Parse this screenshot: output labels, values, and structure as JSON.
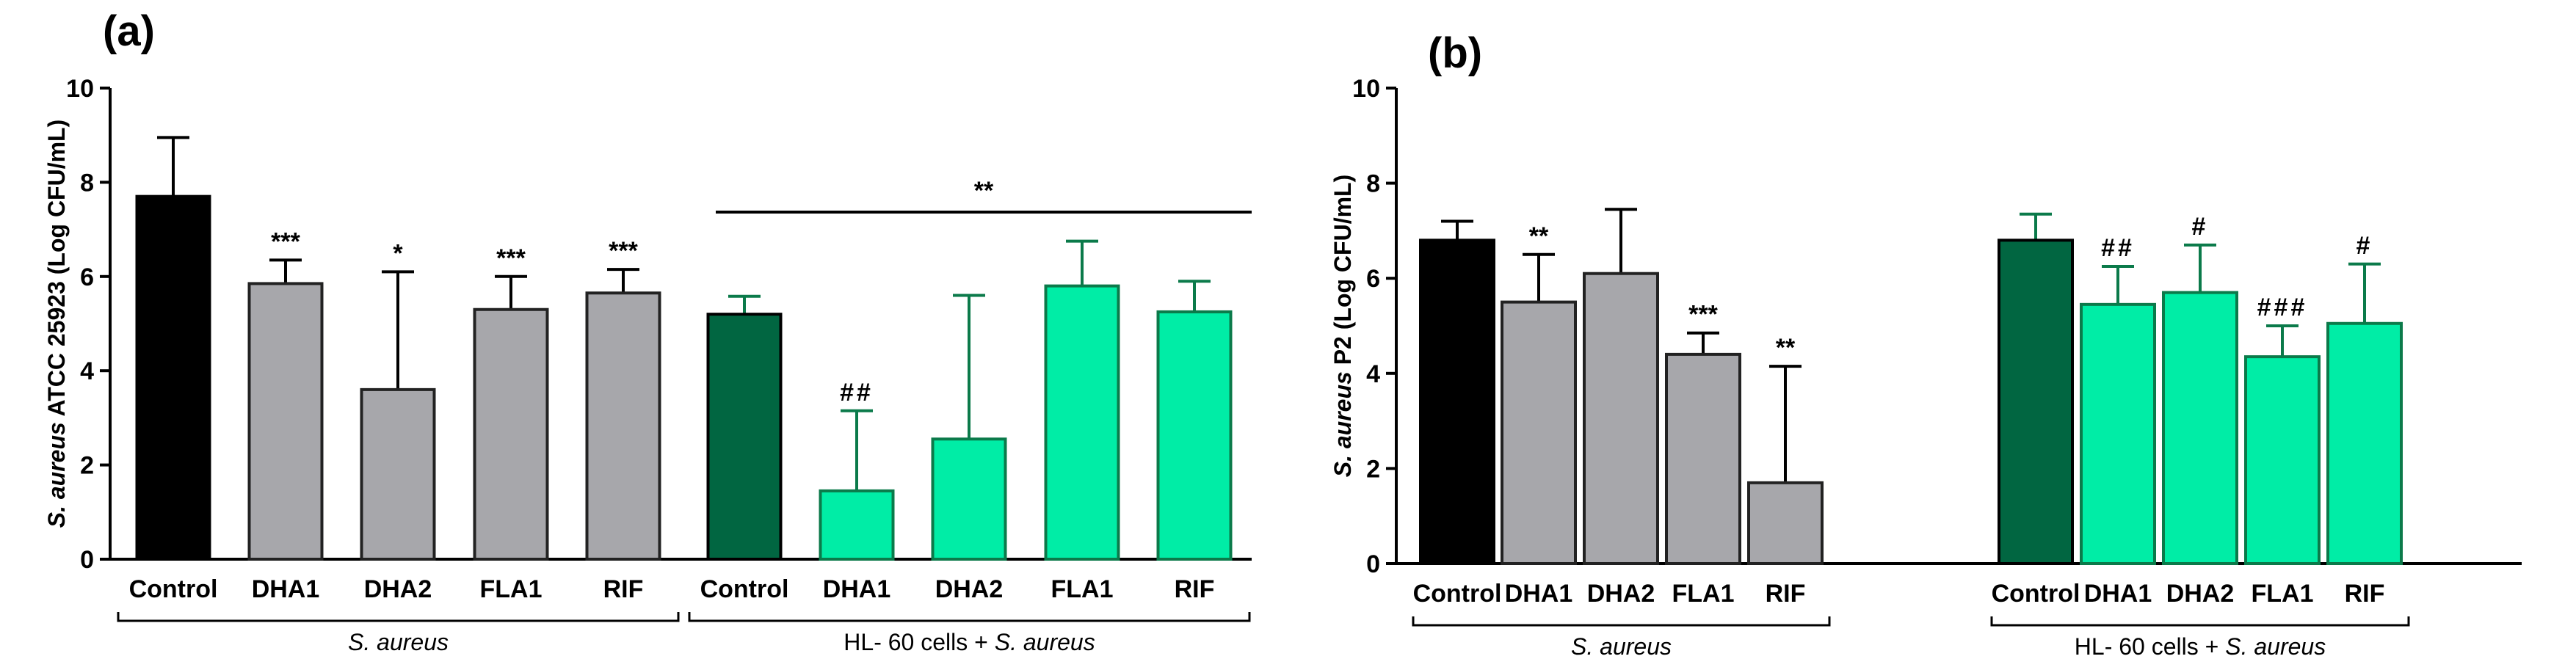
{
  "colors": {
    "control_sa": "#000000",
    "treated_sa": "#a7a7ab",
    "control_hl": "#016641",
    "treated_hl": "#00eda6",
    "axis": "#000000"
  },
  "chart_data": [
    {
      "type": "bar",
      "panel": "(a)",
      "ylabel_italic": "S. aureus",
      "ylabel_rest": " ATCC 25923 (Log CFU/mL)",
      "ylim": [
        0,
        10
      ],
      "yticks": [
        "0",
        "2",
        "4",
        "6",
        "8",
        "10"
      ],
      "categories": [
        "Control",
        "DHA1",
        "DHA2",
        "FLA1",
        "RIF",
        "Control",
        "DHA1",
        "DHA2",
        "FLA1",
        "RIF"
      ],
      "values": [
        7.7,
        5.85,
        3.6,
        5.3,
        5.65,
        5.2,
        1.45,
        2.55,
        5.8,
        5.25
      ],
      "errors": [
        1.25,
        0.5,
        2.5,
        0.7,
        0.5,
        0.38,
        1.7,
        3.05,
        0.95,
        0.65
      ],
      "bar_kinds": [
        "control_sa",
        "treated_sa",
        "treated_sa",
        "treated_sa",
        "treated_sa",
        "control_hl",
        "treated_hl",
        "treated_hl",
        "treated_hl",
        "treated_hl"
      ],
      "significance": [
        "",
        "***",
        "*",
        "***",
        "***",
        "",
        "##",
        "",
        "",
        ""
      ],
      "bracket_label": "**",
      "groups": [
        {
          "italic": "S. aureus",
          "text": ""
        },
        {
          "italic": "S. aureus",
          "text": "HL- 60 cells + "
        }
      ]
    },
    {
      "type": "bar",
      "panel": "(b)",
      "ylabel_italic": "S. aureus",
      "ylabel_rest": " P2 (Log CFU/mL)",
      "ylim": [
        0,
        10
      ],
      "yticks": [
        "0",
        "2",
        "4",
        "6",
        "8",
        "10"
      ],
      "categories": [
        "Control",
        "DHA1",
        "DHA2",
        "FLA1",
        "RIF",
        "Control",
        "DHA1",
        "DHA2",
        "FLA1",
        "RIF"
      ],
      "values": [
        6.8,
        5.5,
        6.1,
        4.4,
        1.7,
        6.8,
        5.45,
        5.7,
        4.35,
        5.05
      ],
      "errors": [
        0.4,
        1.0,
        1.35,
        0.45,
        2.45,
        0.55,
        0.8,
        1.0,
        0.65,
        1.25
      ],
      "bar_kinds": [
        "control_sa",
        "treated_sa",
        "treated_sa",
        "treated_sa",
        "treated_sa",
        "control_hl",
        "treated_hl",
        "treated_hl",
        "treated_hl",
        "treated_hl"
      ],
      "significance": [
        "",
        "**",
        "",
        "***",
        "**",
        "",
        "##",
        "#",
        "###",
        "#"
      ],
      "bracket_label": "",
      "groups": [
        {
          "italic": "S. aureus",
          "text": ""
        },
        {
          "italic": "S. aureus",
          "text": "HL- 60 cells + "
        }
      ]
    }
  ]
}
